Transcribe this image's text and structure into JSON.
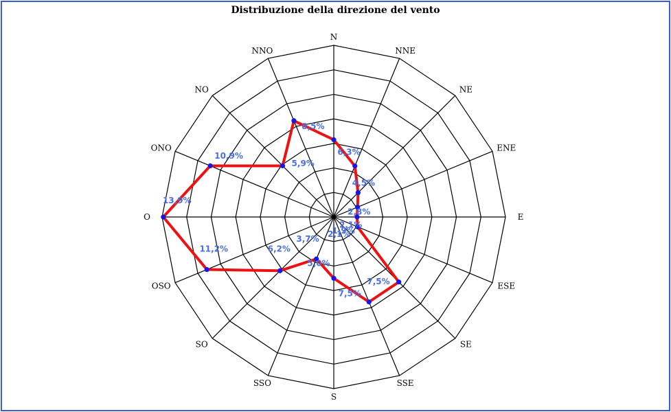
{
  "chart_data": {
    "type": "radar",
    "title": "Distribuzione della direzione del vento",
    "categories": [
      "N",
      "NNE",
      "NE",
      "ENE",
      "E",
      "ESE",
      "SE",
      "SSE",
      "S",
      "SSO",
      "SO",
      "OSO",
      "O",
      "ONO",
      "NO",
      "NNO"
    ],
    "values": [
      6.3,
      4.5,
      2.8,
      2.1,
      1.9,
      2.1,
      7.5,
      7.5,
      5.0,
      3.7,
      6.2,
      11.2,
      13.9,
      10.9,
      5.9,
      8.5
    ],
    "value_labels": [
      "6,3%",
      "4,5%",
      "2,8%",
      "2,1%",
      "1,9%",
      "2,1%",
      "7,5%",
      "7,5%",
      "5,0%",
      "3,7%",
      "6,2%",
      "11,2%",
      "13,9%",
      "10,9%",
      "5,9%",
      "8,5%"
    ],
    "rlim": [
      0,
      14
    ],
    "rings": 7,
    "grid": true,
    "legend": "none"
  },
  "colors": {
    "series_line": "#ee1111",
    "series_point": "#1515ee",
    "value_label": "#4a70e0",
    "frame": "#3b5bdb",
    "grid": "#000000"
  }
}
